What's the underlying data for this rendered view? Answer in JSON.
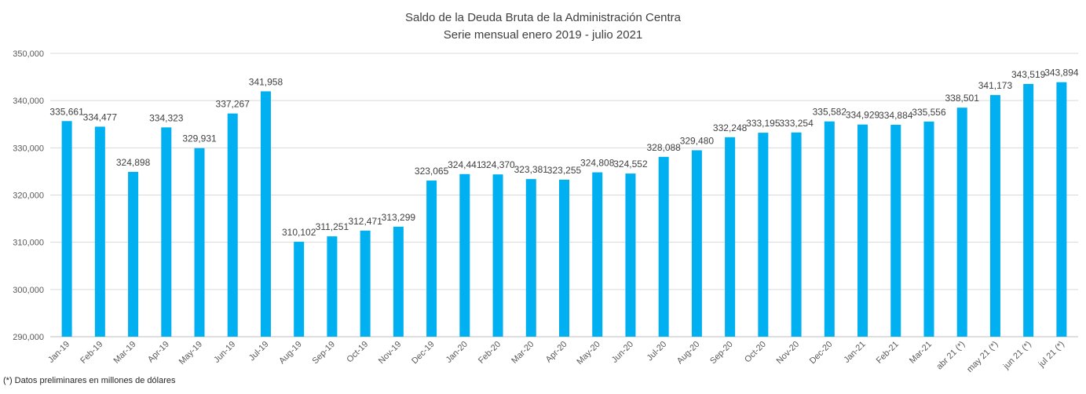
{
  "chart_data": {
    "type": "bar",
    "title": "Saldo de la Deuda Bruta de la Administración Centra",
    "subtitle": "Serie mensual enero 2019 - julio 2021",
    "footnote": "(*) Datos preliminares en millones de dólares",
    "categories": [
      "Jan-19",
      "Feb-19",
      "Mar-19",
      "Apr-19",
      "May-19",
      "Jun-19",
      "Jul-19",
      "Aug-19",
      "Sep-19",
      "Oct-19",
      "Nov-19",
      "Dec-19",
      "Jan-20",
      "Feb-20",
      "Mar-20",
      "Apr-20",
      "May-20",
      "Jun-20",
      "Jul-20",
      "Aug-20",
      "Sep-20",
      "Oct-20",
      "Nov-20",
      "Dec-20",
      "Jan-21",
      "Feb-21",
      "Mar-21",
      "abr 21 (*)",
      "may 21 (*)",
      "jun 21 (*)",
      "jul 21 (*)"
    ],
    "values": [
      335661,
      334477,
      324898,
      334323,
      329931,
      337267,
      341958,
      310102,
      311251,
      312471,
      313299,
      323065,
      324441,
      324370,
      323381,
      323255,
      324808,
      324552,
      328088,
      329480,
      332248,
      333195,
      333254,
      335582,
      334929,
      334884,
      335556,
      338501,
      341173,
      343519,
      343894
    ],
    "data_labels": [
      "335,661",
      "334,477",
      "324,898",
      "334,323",
      "329,931",
      "337,267",
      "341,958",
      "310,102",
      "311,251",
      "312,471",
      "313,299",
      "323,065",
      "324,441",
      "324,370",
      "323,381",
      "323,255",
      "324,808",
      "324,552",
      "328,088",
      "329,480",
      "332,248",
      "333,195",
      "333,254",
      "335,582",
      "334,929",
      "334,884",
      "335,556",
      "338,501",
      "341,173",
      "343,519",
      "343,894"
    ],
    "y_ticks": [
      290000,
      300000,
      310000,
      320000,
      330000,
      340000,
      350000
    ],
    "y_tick_labels": [
      "290,000",
      "300,000",
      "310,000",
      "320,000",
      "330,000",
      "340,000",
      "350,000"
    ],
    "ylim": [
      290000,
      350000
    ],
    "grid": true,
    "bar_color": "#00B0F0"
  }
}
